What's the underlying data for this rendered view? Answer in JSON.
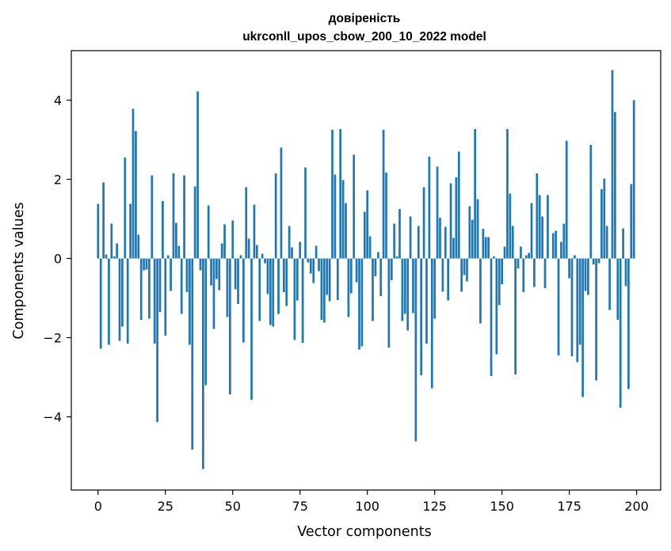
{
  "chart_data": {
    "type": "bar",
    "title": "довіреність",
    "subtitle": "ukrconll_upos_cbow_200_10_2022 model",
    "xlabel": "Vector components",
    "ylabel": "Components values",
    "xlim": [
      -9.95,
      208.95
    ],
    "ylim": [
      -5.85,
      5.25
    ],
    "xticks": [
      0,
      25,
      50,
      75,
      100,
      125,
      150,
      175,
      200
    ],
    "yticks": [
      -4,
      -2,
      0,
      2,
      4
    ],
    "xtick_labels": [
      "0",
      "25",
      "50",
      "75",
      "100",
      "125",
      "150",
      "175",
      "200"
    ],
    "ytick_labels": [
      "−4",
      "−2",
      "0",
      "2",
      "4"
    ],
    "bar_color": "#1f77b4",
    "grid": false,
    "values": [
      1.38,
      -2.28,
      1.92,
      0.1,
      -2.18,
      0.88,
      0.05,
      0.38,
      -2.08,
      -1.72,
      2.55,
      -2.15,
      1.38,
      3.78,
      3.22,
      0.6,
      -1.55,
      -0.3,
      -0.28,
      -1.52,
      2.1,
      -2.15,
      -4.13,
      -1.35,
      1.45,
      -1.95,
      0.08,
      -0.82,
      2.15,
      0.9,
      0.32,
      -1.4,
      2.1,
      -0.85,
      -2.18,
      -4.83,
      1.82,
      4.22,
      -0.3,
      -5.32,
      -3.2,
      1.34,
      -0.68,
      -1.78,
      -0.52,
      -0.8,
      0.38,
      0.86,
      -1.48,
      -3.43,
      0.96,
      -0.78,
      -1.15,
      0.08,
      -2.12,
      1.8,
      0.5,
      -3.57,
      1.36,
      0.34,
      -1.58,
      0.12,
      -0.12,
      -0.9,
      -1.68,
      -1.72,
      2.15,
      -1.4,
      2.8,
      -0.85,
      -1.2,
      0.82,
      0.28,
      -2.06,
      -1.06,
      0.42,
      -2.13,
      2.3,
      -0.1,
      -0.38,
      -0.62,
      0.32,
      -0.32,
      -1.55,
      -1.62,
      -0.92,
      -1.08,
      3.25,
      2.12,
      -1.05,
      3.27,
      1.98,
      1.4,
      -1.48,
      -0.88,
      2.62,
      -0.6,
      -2.3,
      -2.22,
      1.18,
      1.72,
      0.56,
      -1.58,
      -0.45,
      0.16,
      -0.95,
      3.25,
      2.17,
      -2.25,
      -0.55,
      0.88,
      0.05,
      1.25,
      -1.58,
      -1.4,
      -1.82,
      1.06,
      -1.38,
      -4.62,
      0.82,
      -2.95,
      1.8,
      -2.15,
      2.57,
      -3.28,
      -1.52,
      2.32,
      1.03,
      -0.84,
      0.8,
      -1.06,
      1.9,
      0.52,
      2.05,
      2.7,
      -0.84,
      -0.42,
      -0.58,
      1.32,
      0.98,
      3.27,
      1.5,
      -1.64,
      0.75,
      0.54,
      0.54,
      -2.97,
      0.05,
      -2.42,
      -1.18,
      -0.65,
      0.3,
      3.27,
      1.64,
      0.82,
      -2.93,
      -0.25,
      0.3,
      -0.85,
      0.08,
      0.14,
      1.4,
      -0.72,
      2.15,
      1.6,
      1.06,
      -0.75,
      1.6,
      0.0,
      0.64,
      0.7,
      -2.45,
      0.42,
      0.88,
      2.97,
      -0.5,
      -2.47,
      0.08,
      -2.62,
      -2.18,
      -3.5,
      -0.82,
      -0.92,
      2.87,
      -0.15,
      -3.08,
      -0.12,
      1.75,
      2.02,
      0.82,
      -1.3,
      4.76,
      3.7,
      -1.55,
      -3.77,
      0.76,
      -0.7,
      -3.3,
      1.88,
      4.0
    ]
  }
}
